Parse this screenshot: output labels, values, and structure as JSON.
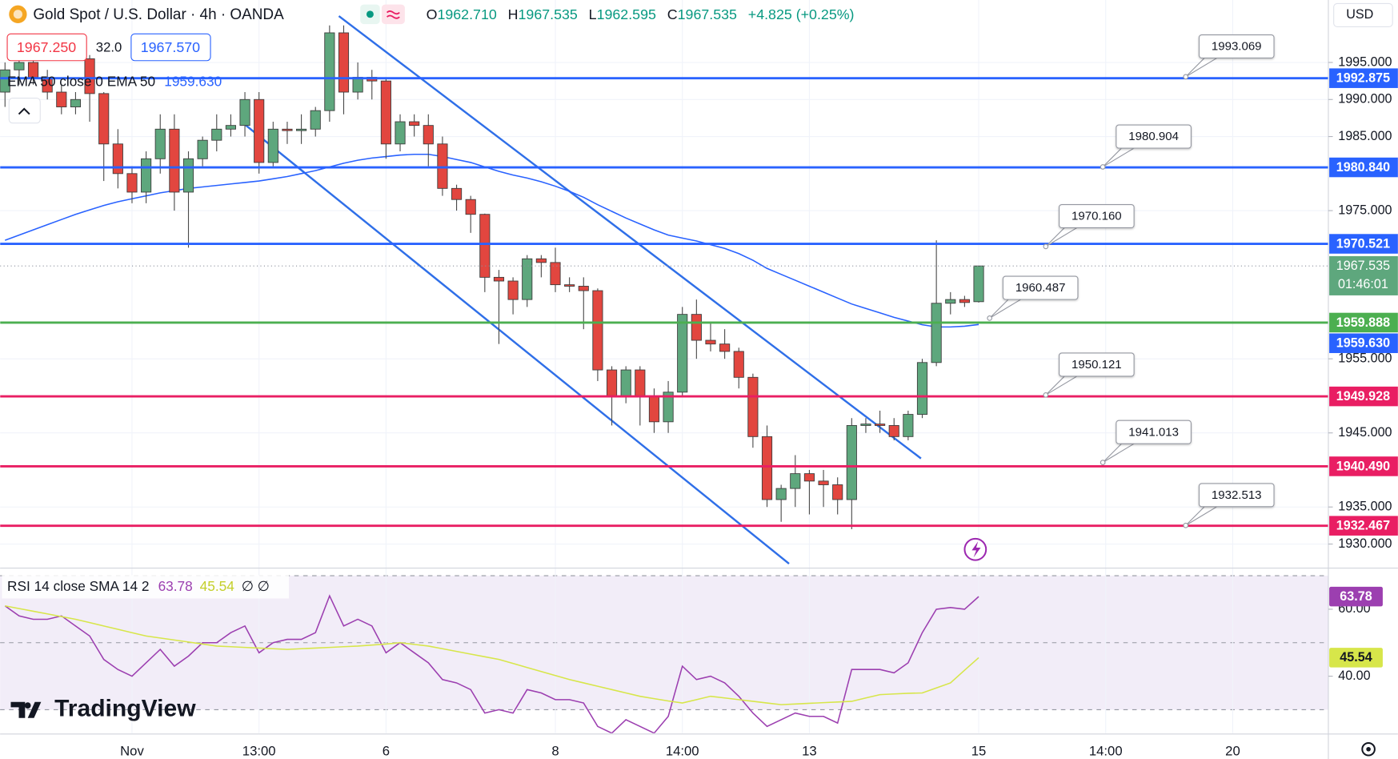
{
  "header": {
    "symbol": "Gold Spot / U.S. Dollar · 4h · OANDA",
    "ohlc": [
      {
        "label": "O",
        "value": "1962.710"
      },
      {
        "label": "H",
        "value": "1967.535"
      },
      {
        "label": "L",
        "value": "1962.595"
      },
      {
        "label": "C",
        "value": "1967.535"
      }
    ],
    "change": "+4.825 (+0.25%)",
    "sell": "1967.250",
    "spread": "32.0",
    "buy": "1967.570",
    "currency": "USD",
    "logo": "TradingView"
  },
  "chart_data": [
    {
      "type": "candlestick",
      "categories": [
        null,
        null,
        null,
        null,
        null,
        null,
        null,
        null,
        null,
        "Nov",
        null,
        null,
        null,
        null,
        null,
        null,
        null,
        null,
        "13:00",
        null,
        null,
        null,
        null,
        null,
        null,
        null,
        null,
        "6",
        null,
        null,
        null,
        null,
        null,
        null,
        null,
        null,
        null,
        null,
        null,
        "8",
        null,
        null,
        null,
        null,
        null,
        null,
        null,
        null,
        "14:00",
        null,
        null,
        null,
        null,
        null,
        null,
        null,
        null,
        "13",
        null,
        null,
        null,
        null,
        null,
        null,
        null,
        null,
        null,
        null,
        null,
        "15",
        null,
        null,
        null,
        null,
        null,
        null,
        null,
        null,
        "14:00",
        null,
        null,
        null,
        null,
        null,
        null,
        null,
        null,
        "20"
      ],
      "open": [
        1991,
        1994,
        1995,
        1993,
        1991,
        1989,
        1995.5,
        1990.8,
        1984,
        1980,
        1977.5,
        1982,
        1986,
        1977.5,
        1982,
        1984.5,
        1986,
        1986.5,
        1990,
        1981.5,
        1986,
        1985.8,
        1986,
        1988.5,
        1999,
        1991,
        1993,
        1992.5,
        1984,
        1987,
        1986.5,
        1984,
        1978,
        1976.5,
        1974.5,
        1966,
        1965.5,
        1963,
        1968.5,
        1968,
        1965,
        1964.8,
        1964.2,
        1953.5,
        1950,
        1953.5,
        1950,
        1946.5,
        1950.5,
        1961,
        1957.5,
        1957,
        1956,
        1952.5,
        1944.5,
        1936,
        1937.5,
        1939.5,
        1938.5,
        1938,
        1936,
        1946,
        1946.2,
        1946,
        1944.5,
        1947.5,
        1954.5,
        1962.5,
        1963,
        1962.71,
        null,
        null,
        null,
        null,
        null,
        null,
        null,
        null,
        null,
        null,
        null,
        null,
        null,
        null,
        null,
        null,
        null,
        null
      ],
      "high": [
        1995,
        1996,
        1996,
        1994,
        1992,
        1991,
        1996,
        1991,
        1986,
        1981,
        1983,
        1988,
        1988,
        1983,
        1985,
        1988,
        1988,
        1991,
        1991,
        1987,
        1987,
        1988,
        1989,
        2000,
        2000,
        1995,
        1994,
        1993,
        1988,
        1988,
        1988,
        1985,
        1978.5,
        1977,
        1974.6,
        1967,
        1966,
        1969,
        1969,
        1970,
        1966,
        1966,
        1964.5,
        1954,
        1954,
        1954,
        1951,
        1952,
        1962,
        1963,
        1960,
        1959,
        1956.5,
        1953,
        1946,
        1938,
        1942,
        1940,
        1940,
        1939,
        1947,
        1947,
        1948,
        1947,
        1948,
        1955,
        1971,
        1964,
        1963.5,
        1967.535,
        null,
        null,
        null,
        null,
        null,
        null,
        null,
        null,
        null,
        null,
        null,
        null,
        null,
        null,
        null,
        null,
        null,
        null
      ],
      "low": [
        1989,
        1992,
        1992,
        1990,
        1988,
        1988,
        1987,
        1979,
        1978,
        1976,
        1976,
        1980,
        1975,
        1970,
        1981,
        1983,
        1985,
        1985,
        1980,
        1981,
        1984,
        1984,
        1985,
        1987,
        1988,
        1990,
        1990,
        1982,
        1983,
        1985,
        1981,
        1977,
        1975,
        1972,
        1964,
        1957,
        1961,
        1962,
        1966,
        1964,
        1964,
        1959,
        1952,
        1946,
        1949,
        1946,
        1945,
        1945,
        1950,
        1955,
        1956,
        1955,
        1951,
        1943,
        1935,
        1933,
        1935,
        1934,
        1935,
        1934,
        1932,
        1945,
        1945,
        1944,
        1944,
        1947,
        1954,
        1961,
        1962,
        1962.595,
        null,
        null,
        null,
        null,
        null,
        null,
        null,
        null,
        null,
        null,
        null,
        null,
        null,
        null,
        null,
        null,
        null,
        null
      ],
      "close": [
        1994,
        1995,
        1993,
        1991,
        1989,
        1990,
        1990.8,
        1984,
        1980,
        1977.5,
        1982,
        1986,
        1977.5,
        1982,
        1984.5,
        1986,
        1986.5,
        1990,
        1981.5,
        1986,
        1985.8,
        1986,
        1988.5,
        1999,
        1991,
        1993,
        1992.5,
        1984,
        1987,
        1986.5,
        1984,
        1978,
        1976.5,
        1974.5,
        1966,
        1965.5,
        1963,
        1968.5,
        1968,
        1965,
        1964.8,
        1964.2,
        1953.5,
        1950,
        1953.5,
        1950,
        1946.5,
        1950.5,
        1961,
        1957.5,
        1957,
        1956,
        1952.5,
        1944.5,
        1936,
        1937.5,
        1939.5,
        1938.5,
        1938,
        1936,
        1946,
        1946.2,
        1946,
        1944.5,
        1947.5,
        1954.5,
        1962.5,
        1963,
        1962.6,
        1967.535,
        null,
        null,
        null,
        null,
        null,
        null,
        null,
        null,
        null,
        null,
        null,
        null,
        null,
        null,
        null,
        null,
        null,
        null
      ],
      "up_color": "#5ea77d",
      "down_color": "#e2463f",
      "ylim": [
        1927.35,
        2003.43
      ],
      "yticks": [
        {
          "value": 1995,
          "label": "1995.000"
        },
        {
          "value": 1990,
          "label": "1990.000"
        },
        {
          "value": 1985,
          "label": "1985.000"
        },
        {
          "value": 1975,
          "label": "1975.000"
        },
        {
          "value": 1955,
          "label": "1955.000"
        },
        {
          "value": 1945,
          "label": "1945.000"
        },
        {
          "value": 1935,
          "label": "1935.000"
        },
        {
          "value": 1930,
          "label": "1930.000"
        }
      ],
      "series": [
        {
          "name": "EMA 50 close 0 EMA 50",
          "color": "#2962ff",
          "legend_value": "1959.630",
          "values": [
            1971,
            1971.7,
            1972.4,
            1973.1,
            1973.8,
            1974.5,
            1975.1,
            1975.7,
            1976.2,
            1976.6,
            1977,
            1977.4,
            1977.7,
            1978,
            1978.2,
            1978.4,
            1978.6,
            1978.8,
            1979,
            1979.3,
            1979.6,
            1980,
            1980.4,
            1980.9,
            1981.4,
            1981.8,
            1982.1,
            1982.3,
            1982.5,
            1982.6,
            1982.6,
            1982.3,
            1981.9,
            1981.5,
            1980.9,
            1980.3,
            1979.8,
            1979.4,
            1978.9,
            1978.3,
            1977.6,
            1976.8,
            1975.8,
            1974.9,
            1974,
            1973.2,
            1972.4,
            1971.7,
            1971.3,
            1970.9,
            1970.4,
            1969.9,
            1969.2,
            1968.3,
            1967.2,
            1966.4,
            1965.6,
            1964.8,
            1964,
            1963.2,
            1962.4,
            1961.8,
            1961.2,
            1960.6,
            1960.1,
            1959.6,
            1959.3,
            1959.3,
            1959.4,
            1959.63,
            null,
            null,
            null,
            null,
            null,
            null,
            null,
            null,
            null,
            null,
            null,
            null,
            null,
            null,
            null,
            null,
            null,
            null
          ]
        }
      ],
      "levels": [
        {
          "value": 1992.875,
          "label": "1992.875",
          "color": "#2962ff"
        },
        {
          "value": 1980.84,
          "label": "1980.840",
          "color": "#2962ff"
        },
        {
          "value": 1970.521,
          "label": "1970.521",
          "color": "#2962ff"
        },
        {
          "value": 1959.888,
          "label": "1959.888",
          "color": "#4caf50"
        },
        {
          "value": 1949.928,
          "label": "1949.928",
          "color": "#e91e63"
        },
        {
          "value": 1940.49,
          "label": "1940.490",
          "color": "#e91e63"
        },
        {
          "value": 1932.467,
          "label": "1932.467",
          "color": "#e91e63"
        }
      ],
      "callouts": [
        {
          "value": 1993.069,
          "label": "1993.069"
        },
        {
          "value": 1980.904,
          "label": "1980.904"
        },
        {
          "value": 1970.16,
          "label": "1970.160"
        },
        {
          "value": 1960.487,
          "label": "1960.487"
        },
        {
          "value": 1950.121,
          "label": "1950.121"
        },
        {
          "value": 1941.013,
          "label": "1941.013"
        },
        {
          "value": 1932.513,
          "label": "1932.513"
        }
      ],
      "last_price": {
        "value": 1967.535,
        "label": "1967.535",
        "countdown": "01:46:01"
      }
    },
    {
      "type": "line",
      "title": "RSI 14 close SMA 14 2",
      "extra": "∅ ∅",
      "ylim": [
        23,
        72
      ],
      "yticks": [
        {
          "value": 60,
          "label": "60.00"
        },
        {
          "value": 40,
          "label": "40.00"
        }
      ],
      "levels": [
        30,
        50,
        70
      ],
      "series": [
        {
          "color": "#9c3fb0",
          "legend_value": "63.78",
          "values": [
            61,
            58,
            57,
            57,
            58,
            55,
            52,
            45,
            42,
            40,
            44,
            48,
            43,
            46,
            50,
            50,
            53,
            55,
            47,
            50,
            51,
            51,
            53,
            64,
            55,
            57,
            55,
            47,
            50,
            47,
            44,
            39,
            38,
            36,
            29,
            30,
            29,
            36,
            35,
            33,
            33,
            32,
            25,
            23,
            27,
            25,
            23,
            28,
            43,
            39,
            40,
            38,
            34,
            29,
            25,
            27,
            29,
            28,
            28,
            26,
            42,
            42,
            42,
            41,
            44,
            53,
            60,
            60.5,
            60,
            63.78,
            null,
            null,
            null,
            null,
            null,
            null,
            null,
            null,
            null,
            null,
            null,
            null,
            null,
            null,
            null,
            null,
            null,
            null
          ]
        },
        {
          "color": "#d7e64a",
          "legend_value": "45.54",
          "values": [
            61,
            60.2,
            59.4,
            58.6,
            57.8,
            57,
            56,
            55,
            54,
            53,
            52,
            51.4,
            50.8,
            50.2,
            49.6,
            49,
            48.8,
            48.6,
            48.4,
            48.2,
            48,
            48.2,
            48.4,
            48.6,
            48.8,
            49,
            49.3,
            49.6,
            50,
            49.5,
            49,
            48.2,
            47.4,
            46.6,
            45.8,
            45,
            43.8,
            42.6,
            41.4,
            40.2,
            39,
            38,
            37,
            36,
            35,
            34,
            33.3,
            32.6,
            32,
            33,
            34,
            33.5,
            33,
            32.5,
            32,
            31.5,
            31.7,
            31.9,
            32.1,
            32.3,
            32.5,
            33.5,
            34.5,
            34.7,
            34.9,
            35,
            36.5,
            38,
            41.8,
            45.54,
            null,
            null,
            null,
            null,
            null,
            null,
            null,
            null,
            null,
            null,
            null,
            null,
            null,
            null,
            null,
            null,
            null,
            null
          ]
        }
      ]
    }
  ]
}
